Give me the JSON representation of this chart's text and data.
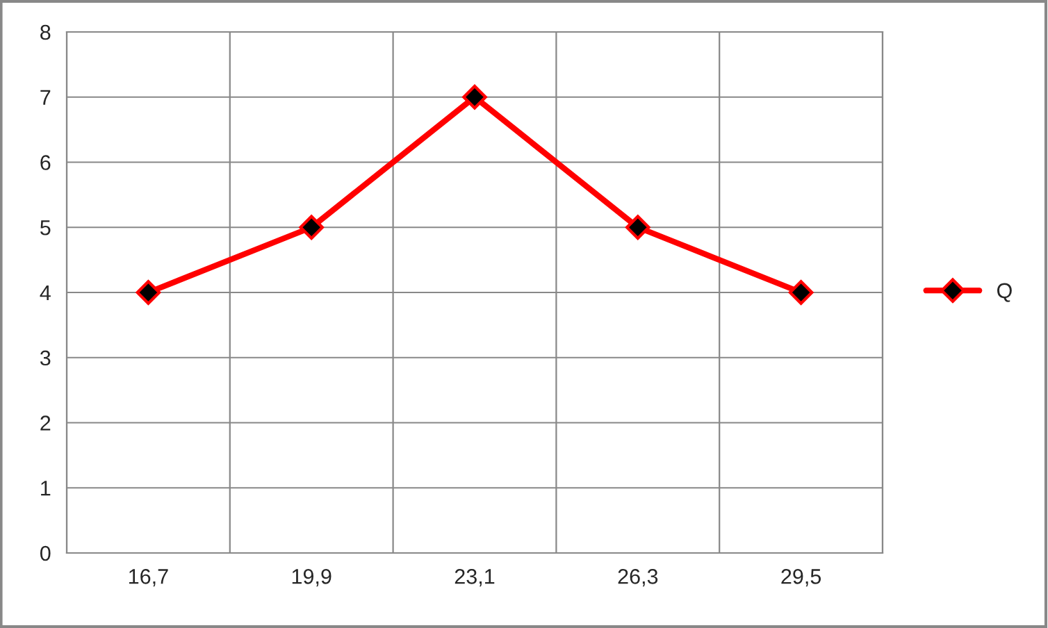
{
  "chart_data": {
    "type": "line",
    "categories": [
      "16,7",
      "19,9",
      "23,1",
      "26,3",
      "29,5"
    ],
    "series": [
      {
        "name": "Q",
        "color": "#ff0000",
        "values": [
          4,
          5,
          7,
          5,
          4
        ]
      }
    ],
    "ylim": [
      0,
      8
    ],
    "yticks": [
      0,
      1,
      2,
      3,
      4,
      5,
      6,
      7,
      8
    ],
    "grid": true,
    "legend": "right",
    "marker": "diamond",
    "line_style": "solid"
  }
}
